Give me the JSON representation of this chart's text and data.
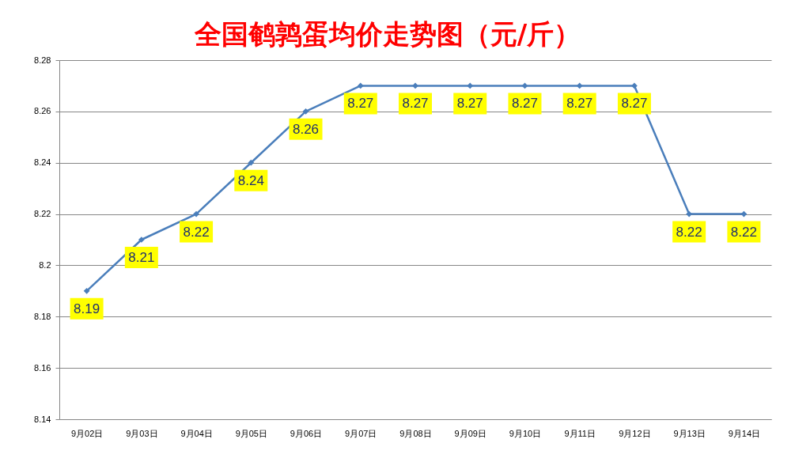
{
  "chart_data": {
    "type": "line",
    "title": "全国鹌鹑蛋均价走势图（元/斤）",
    "categories": [
      "9月02日",
      "9月03日",
      "9月04日",
      "9月05日",
      "9月06日",
      "9月07日",
      "9月08日",
      "9月09日",
      "9月10日",
      "9月11日",
      "9月12日",
      "9月13日",
      "9月14日"
    ],
    "series": [
      {
        "color": "#4a7ebb",
        "values": [
          8.19,
          8.21,
          8.22,
          8.24,
          8.26,
          8.27,
          8.27,
          8.27,
          8.27,
          8.27,
          8.27,
          8.22,
          8.22
        ]
      }
    ],
    "ylim": [
      8.14,
      8.28
    ],
    "yticks": [
      8.14,
      8.16,
      8.18,
      8.2,
      8.22,
      8.24,
      8.26,
      8.28
    ],
    "grid": "y",
    "marker": "diamond",
    "line_style": "solid",
    "data_labels": true
  }
}
